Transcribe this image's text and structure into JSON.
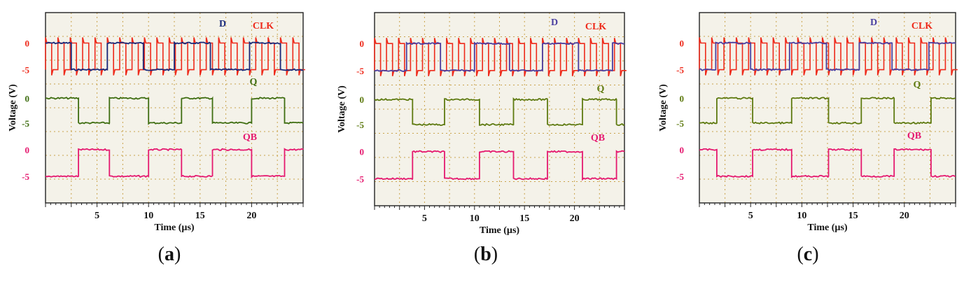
{
  "chart_data": [
    {
      "panel": "a",
      "type": "line",
      "xlabel": "Time (µs)",
      "ylabel": "Voltage (V)",
      "xlim": [
        0,
        25
      ],
      "x_ticks": [
        5,
        10,
        15,
        20
      ],
      "clk_period_us": 1.2,
      "channels": [
        {
          "name": "CLK",
          "color": "#ee2a1b",
          "tick_labels": [
            "0",
            "-5"
          ],
          "high": 0,
          "low": -5,
          "spikes": true
        },
        {
          "name": "D",
          "color": "#1a2a7a",
          "tick_labels": [],
          "high": 0,
          "low": -5,
          "initial": "high",
          "transitions": [
            2.5,
            6.0,
            9.5,
            12.5,
            16.0,
            19.8,
            22.8
          ]
        },
        {
          "name": "Q",
          "color": "#3f6e12",
          "tick_labels": [
            "0",
            "-5"
          ],
          "high": 0,
          "low": -5,
          "initial": "high",
          "transitions": [
            3.2,
            6.2,
            10.0,
            13.2,
            16.2,
            20.0,
            23.2
          ]
        },
        {
          "name": "QB",
          "color": "#e5196f",
          "tick_labels": [
            "0",
            "-5"
          ],
          "high": 0,
          "low": -5,
          "initial": "low",
          "transitions": [
            3.2,
            6.2,
            10.0,
            13.2,
            16.2,
            20.0,
            23.2
          ]
        }
      ],
      "caption_label": "a"
    },
    {
      "panel": "b",
      "type": "line",
      "xlabel": "Time (µs)",
      "ylabel": "Voltage (V)",
      "xlim": [
        0,
        25
      ],
      "x_ticks": [
        5,
        10,
        15,
        20
      ],
      "clk_period_us": 1.2,
      "channels": [
        {
          "name": "CLK",
          "color": "#ee2a1b",
          "tick_labels": [
            "0",
            "-5"
          ],
          "high": 0,
          "low": -5,
          "spikes": true
        },
        {
          "name": "D",
          "color": "#4a3fa0",
          "tick_labels": [],
          "high": 0,
          "low": -5,
          "initial": "low",
          "transitions": [
            3.2,
            6.6,
            10.0,
            13.5,
            16.8,
            20.4,
            23.8
          ]
        },
        {
          "name": "Q",
          "color": "#5e7a10",
          "tick_labels": [
            "0",
            "-5"
          ],
          "high": 0,
          "low": -5,
          "initial": "high",
          "transitions": [
            3.8,
            7.0,
            10.5,
            13.9,
            17.3,
            20.8,
            24.2
          ]
        },
        {
          "name": "QB",
          "color": "#e5196f",
          "tick_labels": [
            "0",
            "-5"
          ],
          "high": 0,
          "low": -5,
          "initial": "low",
          "transitions": [
            3.8,
            7.0,
            10.5,
            13.9,
            17.3,
            20.8,
            24.2
          ]
        }
      ],
      "caption_label": "b"
    },
    {
      "panel": "c",
      "type": "line",
      "xlabel": "Time (µs)",
      "ylabel": "Voltage (V)",
      "xlim": [
        0,
        25
      ],
      "x_ticks": [
        5,
        10,
        15,
        20
      ],
      "clk_period_us": 1.2,
      "channels": [
        {
          "name": "CLK",
          "color": "#ee2a1b",
          "tick_labels": [
            "0",
            "-5"
          ],
          "high": 0,
          "low": -5,
          "spikes": true
        },
        {
          "name": "D",
          "color": "#4a3fa0",
          "tick_labels": [],
          "high": 0,
          "low": -5,
          "initial": "low",
          "transitions": [
            1.6,
            5.0,
            8.8,
            12.4,
            15.6,
            18.8,
            22.4
          ]
        },
        {
          "name": "Q",
          "color": "#5e7a10",
          "tick_labels": [
            "0",
            "-5"
          ],
          "high": 0,
          "low": -5,
          "initial": "low",
          "transitions": [
            1.7,
            5.2,
            9.0,
            12.6,
            15.8,
            19.0,
            22.6
          ]
        },
        {
          "name": "QB",
          "color": "#e5196f",
          "tick_labels": [
            "0",
            "-5"
          ],
          "high": 0,
          "low": -5,
          "initial": "high",
          "transitions": [
            1.7,
            5.2,
            9.0,
            12.6,
            15.8,
            19.0,
            22.6
          ]
        }
      ],
      "caption_label": "c"
    }
  ],
  "captions": {
    "open": "(",
    "close": ")"
  },
  "ylabel_text": "Voltage (V)",
  "xlabel_text": "Time (µs)"
}
